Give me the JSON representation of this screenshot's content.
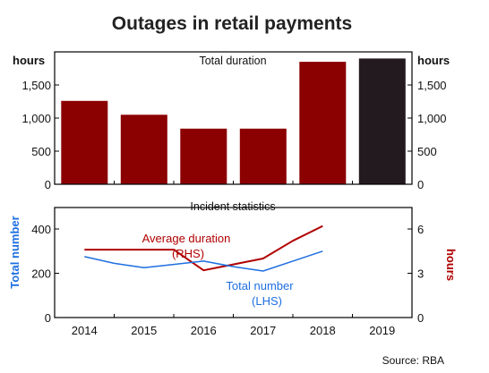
{
  "title": "Outages in retail payments",
  "source": "Source: RBA",
  "colors": {
    "bar_main": "#8b0000",
    "bar_highlight": "#231a1f",
    "avg_line": "#b00000",
    "total_line": "#1e6fe0",
    "rhs_label": "#b00000",
    "lhs_label": "#1e6fe0"
  },
  "chart_data": [
    {
      "type": "bar",
      "panel_title": "Total duration",
      "unit_left": "hours",
      "unit_right": "hours",
      "categories": [
        "2014",
        "2015",
        "2016",
        "2017",
        "2018",
        "2019"
      ],
      "values": [
        1260,
        1050,
        840,
        840,
        1850,
        1900
      ],
      "highlight_index": 5,
      "ylim": [
        0,
        2000
      ],
      "yticks": [
        0,
        500,
        1000,
        1500
      ],
      "ytick_labels": [
        "0",
        "500",
        "1,000",
        "1,500"
      ],
      "grid": false
    },
    {
      "type": "line",
      "panel_title": "Incident statistics",
      "ylabel_left": "Total number",
      "ylabel_right": "hours",
      "ylim_left": [
        0,
        400
      ],
      "yticks_left": [
        0,
        200,
        400
      ],
      "ylim_right": [
        0,
        6
      ],
      "yticks_right": [
        0,
        3,
        6
      ],
      "x": [
        "2014",
        "2015",
        "2016",
        "2017",
        "2018",
        "2019"
      ],
      "series": [
        {
          "name": "Average duration",
          "name_line2": "(RHS)",
          "axis": "right",
          "x": [
            2014,
            2014.5,
            2015,
            2015.5,
            2016,
            2016.5,
            2017,
            2017.5,
            2018
          ],
          "values": [
            4.6,
            4.6,
            4.6,
            4.6,
            3.2,
            3.6,
            4.0,
            5.2,
            6.2
          ]
        },
        {
          "name": "Total number",
          "name_line2": "(LHS)",
          "axis": "left",
          "x": [
            2014,
            2014.5,
            2015,
            2015.5,
            2016,
            2016.5,
            2017,
            2017.5,
            2018
          ],
          "values": [
            275,
            245,
            225,
            240,
            255,
            230,
            210,
            255,
            300
          ]
        }
      ],
      "grid": false
    }
  ]
}
